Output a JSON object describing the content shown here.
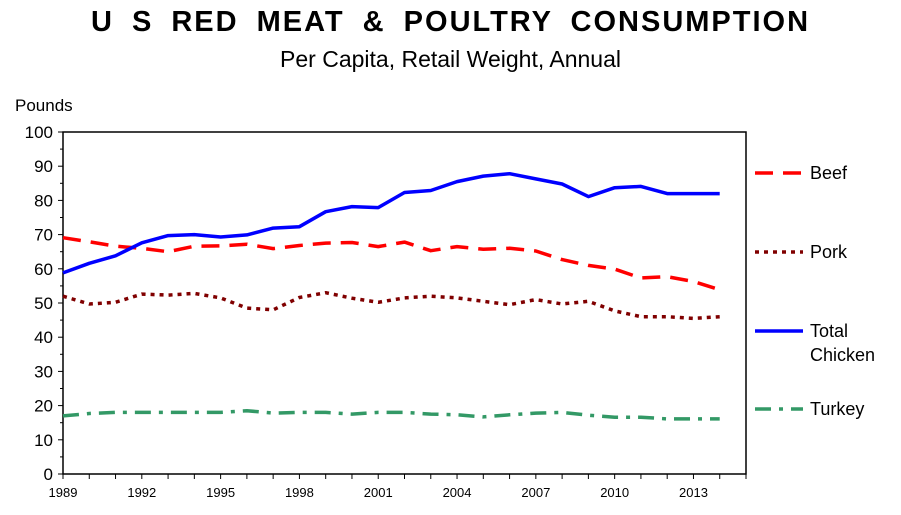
{
  "chart_data": {
    "type": "line",
    "title": "U S  RED  MEAT  &  POULTRY  CONSUMPTION",
    "subtitle": "Per Capita, Retail Weight, Annual",
    "ylabel": "Pounds",
    "xlabel": "",
    "ylim": [
      0,
      100
    ],
    "yticks": [
      0,
      10,
      20,
      30,
      40,
      50,
      60,
      70,
      80,
      90,
      100
    ],
    "xlim": [
      1989,
      2015
    ],
    "xticks": [
      1989,
      1992,
      1995,
      1998,
      2001,
      2004,
      2007,
      2010,
      2013
    ],
    "grid": false,
    "legend_position": "right",
    "x": [
      1989,
      1990,
      1991,
      1992,
      1993,
      1994,
      1995,
      1996,
      1997,
      1998,
      1999,
      2000,
      2001,
      2002,
      2003,
      2004,
      2005,
      2006,
      2007,
      2008,
      2009,
      2010,
      2011,
      2012,
      2013,
      2014
    ],
    "series": [
      {
        "name": "Beef",
        "color": "#ff0000",
        "style": "dashed",
        "values": [
          69.1,
          67.9,
          66.6,
          66.0,
          65.0,
          66.6,
          66.7,
          67.2,
          65.9,
          66.8,
          67.5,
          67.7,
          66.5,
          67.8,
          65.3,
          66.5,
          65.7,
          66.0,
          65.2,
          62.7,
          61.0,
          59.9,
          57.3,
          57.7,
          56.3,
          53.9
        ]
      },
      {
        "name": "Pork",
        "color": "#800000",
        "style": "dotted",
        "values": [
          52.0,
          49.7,
          50.2,
          52.6,
          52.3,
          52.8,
          51.5,
          48.5,
          48.0,
          51.6,
          53.0,
          51.4,
          50.2,
          51.5,
          52.0,
          51.5,
          50.5,
          49.5,
          51.0,
          49.7,
          50.5,
          47.7,
          46.0,
          46.0,
          45.5,
          46.0
        ]
      },
      {
        "name": "Total Chicken",
        "color": "#0000ff",
        "style": "solid",
        "values": [
          58.8,
          61.6,
          63.8,
          67.6,
          69.7,
          70.0,
          69.3,
          69.9,
          71.9,
          72.3,
          76.7,
          78.2,
          77.9,
          82.3,
          82.9,
          85.5,
          87.1,
          87.8,
          86.3,
          84.8,
          81.1,
          83.7,
          84.1,
          82.0,
          82.0,
          82.0
        ]
      },
      {
        "name": "Turkey",
        "color": "#339966",
        "style": "dashdot",
        "values": [
          17.0,
          17.7,
          18.0,
          18.0,
          18.0,
          18.0,
          18.0,
          18.5,
          17.8,
          18.0,
          18.0,
          17.5,
          18.0,
          18.0,
          17.5,
          17.3,
          16.7,
          17.3,
          17.8,
          18.0,
          17.2,
          16.6,
          16.6,
          16.1,
          16.1,
          16.1
        ]
      }
    ],
    "legend": [
      {
        "label_lines": [
          "Beef"
        ]
      },
      {
        "label_lines": [
          "Pork"
        ]
      },
      {
        "label_lines": [
          "Total",
          "Chicken"
        ]
      },
      {
        "label_lines": [
          "Turkey"
        ]
      }
    ]
  }
}
